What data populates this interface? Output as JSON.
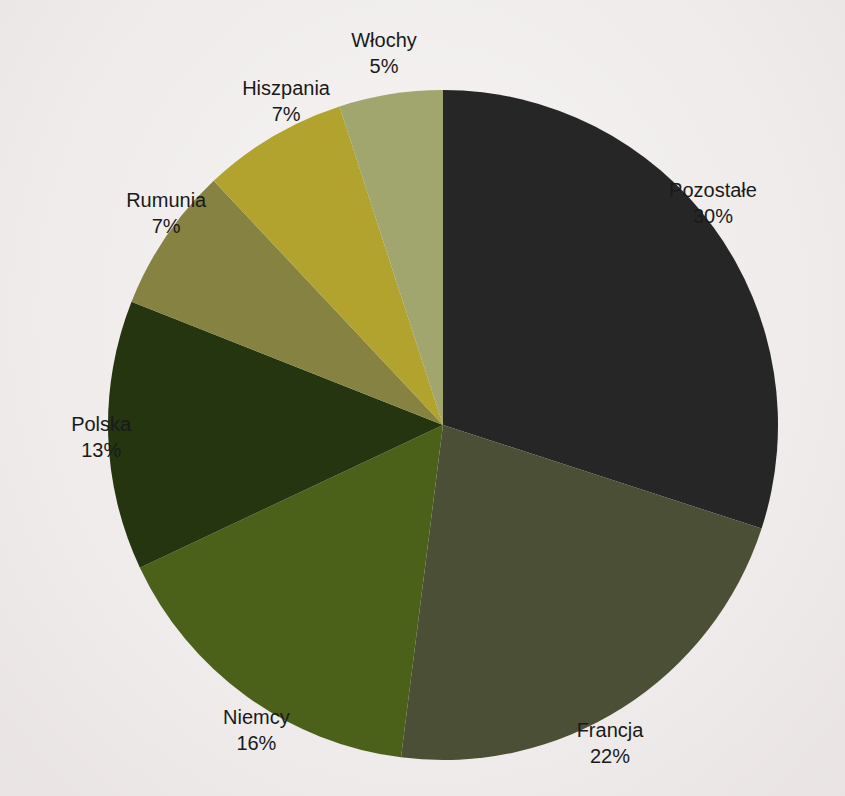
{
  "chart_data": {
    "type": "pie",
    "categories": [
      "Pozostałe",
      "Francja",
      "Niemcy",
      "Polska",
      "Rumunia",
      "Hiszpania",
      "Włochy"
    ],
    "values": [
      30,
      22,
      16,
      13,
      7,
      7,
      5
    ],
    "value_labels": [
      "30%",
      "22%",
      "16%",
      "13%",
      "7%",
      "7%",
      "5%"
    ],
    "colors": [
      "#262626",
      "#4a4f35",
      "#4b6119",
      "#243510",
      "#868241",
      "#b2a22e",
      "#a0a66e"
    ],
    "data_labels": true
  }
}
